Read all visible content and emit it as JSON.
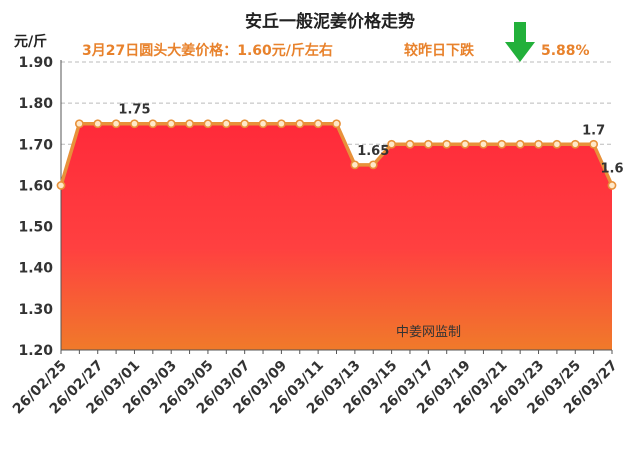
{
  "chart_data": {
    "type": "area",
    "title": "安丘一般泥姜价格走势",
    "subtitle": "3月27日圆头大姜价格：1.60元/斤左右",
    "change_text": "较昨日下跌",
    "change_pct": "5.88%",
    "change_direction": "down",
    "ylabel": "元/斤",
    "ylim": [
      1.2,
      1.9
    ],
    "yticks": [
      "1.20",
      "1.30",
      "1.40",
      "1.50",
      "1.60",
      "1.70",
      "1.80",
      "1.90"
    ],
    "grid": true,
    "watermark": "中姜网监制",
    "x_tick_labels": [
      "26/02/25",
      "26/02/27",
      "26/03/01",
      "26/03/03",
      "26/03/05",
      "26/03/07",
      "26/03/09",
      "26/03/11",
      "26/03/13",
      "26/03/15",
      "26/03/17",
      "26/03/19",
      "26/03/21",
      "26/03/23",
      "26/03/25",
      "26/03/27"
    ],
    "dates": [
      "26/02/25",
      "26/02/26",
      "26/02/27",
      "26/02/28",
      "26/03/01",
      "26/03/02",
      "26/03/03",
      "26/03/04",
      "26/03/05",
      "26/03/06",
      "26/03/07",
      "26/03/08",
      "26/03/09",
      "26/03/10",
      "26/03/11",
      "26/03/12",
      "26/03/13",
      "26/03/14",
      "26/03/15",
      "26/03/16",
      "26/03/17",
      "26/03/18",
      "26/03/19",
      "26/03/20",
      "26/03/21",
      "26/03/22",
      "26/03/23",
      "26/03/24",
      "26/03/25",
      "26/03/26",
      "26/03/27"
    ],
    "values": [
      1.6,
      1.75,
      1.75,
      1.75,
      1.75,
      1.75,
      1.75,
      1.75,
      1.75,
      1.75,
      1.75,
      1.75,
      1.75,
      1.75,
      1.75,
      1.75,
      1.65,
      1.65,
      1.7,
      1.7,
      1.7,
      1.7,
      1.7,
      1.7,
      1.7,
      1.7,
      1.7,
      1.7,
      1.7,
      1.7,
      1.6
    ],
    "data_labels": [
      {
        "index": 4,
        "text": "1.75"
      },
      {
        "index": 17,
        "text": "1.65"
      },
      {
        "index": 29,
        "text": "1.7"
      },
      {
        "index": 30,
        "text": "1.6"
      }
    ],
    "colors": {
      "line": "#e8913a",
      "marker_fill": "#ffe8c8",
      "area_top": "#ff2a3a",
      "area_bottom": "#f07a2a",
      "arrow": "#22b03a"
    }
  }
}
